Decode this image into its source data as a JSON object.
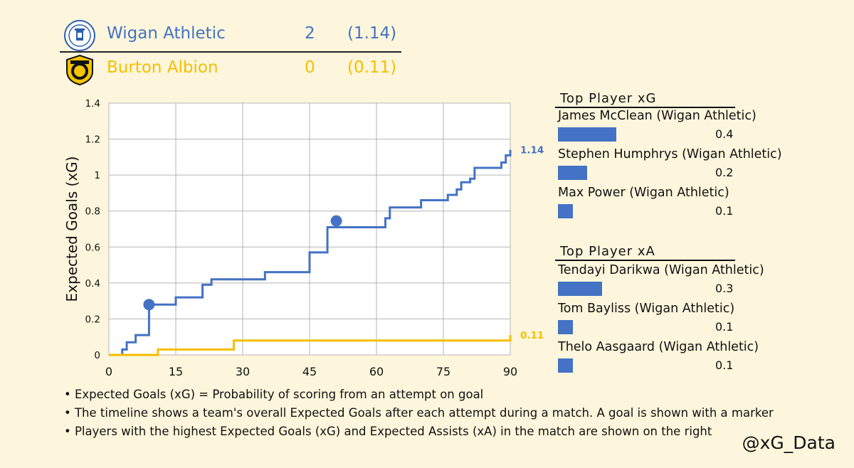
{
  "scoreboard": {
    "home": {
      "name": "Wigan Athletic",
      "score": "2",
      "xg": "(1.14)",
      "color": "#4472c4",
      "crest_icon": "wigan-athletic-crest-icon"
    },
    "away": {
      "name": "Burton Albion",
      "score": "0",
      "xg": "(0.11)",
      "color": "#f5be00",
      "crest_icon": "burton-albion-crest-icon"
    }
  },
  "chart_data": {
    "type": "line",
    "ylabel": "Expected Goals (xG)",
    "xlabel": "",
    "xlim": [
      0,
      90
    ],
    "ylim": [
      0,
      1.4
    ],
    "xticks": [
      "0",
      "15",
      "30",
      "45",
      "60",
      "75",
      "90"
    ],
    "yticks": [
      "0",
      "0.2",
      "0.4",
      "0.6",
      "0.8",
      "1",
      "1.2",
      "1.4"
    ],
    "grid": true,
    "series": [
      {
        "name": "Wigan Athletic",
        "color": "#4472c4",
        "end_label": "1.14",
        "x": [
          0,
          3,
          3,
          4,
          4,
          6,
          6,
          9,
          9,
          15,
          15,
          21,
          21,
          23,
          23,
          35,
          35,
          45,
          45,
          49,
          49,
          62,
          62,
          63,
          63,
          70,
          70,
          76,
          76,
          78,
          78,
          79,
          79,
          81,
          81,
          82,
          82,
          88,
          88,
          89,
          89,
          90,
          90
        ],
        "y": [
          0,
          0,
          0.03,
          0.03,
          0.07,
          0.07,
          0.11,
          0.11,
          0.28,
          0.28,
          0.32,
          0.32,
          0.39,
          0.39,
          0.42,
          0.42,
          0.46,
          0.46,
          0.57,
          0.57,
          0.71,
          0.71,
          0.76,
          0.76,
          0.82,
          0.82,
          0.86,
          0.86,
          0.89,
          0.89,
          0.92,
          0.92,
          0.96,
          0.96,
          0.98,
          0.98,
          1.04,
          1.04,
          1.07,
          1.07,
          1.11,
          1.11,
          1.14
        ],
        "goals": [
          {
            "x": 9,
            "y": 0.28
          },
          {
            "x": 51,
            "y": 0.745
          }
        ]
      },
      {
        "name": "Burton Albion",
        "color": "#f5be00",
        "end_label": "0.11",
        "x": [
          0,
          11,
          11,
          28,
          28,
          90,
          90
        ],
        "y": [
          0,
          0,
          0.03,
          0.03,
          0.08,
          0.08,
          0.11
        ],
        "goals": []
      }
    ]
  },
  "top_xg": {
    "title": "Top Player xG",
    "players": [
      {
        "name": "James McClean (Wigan Athletic)",
        "value": "0.4",
        "fraction": 0.4
      },
      {
        "name": "Stephen Humphrys (Wigan Athletic)",
        "value": "0.2",
        "fraction": 0.2
      },
      {
        "name": "Max Power (Wigan Athletic)",
        "value": "0.1",
        "fraction": 0.1
      }
    ]
  },
  "top_xa": {
    "title": "Top Player xA",
    "players": [
      {
        "name": "Tendayi Darikwa (Wigan Athletic)",
        "value": "0.3",
        "fraction": 0.3
      },
      {
        "name": "Tom Bayliss (Wigan Athletic)",
        "value": "0.1",
        "fraction": 0.1
      },
      {
        "name": "Thelo Aasgaard (Wigan Athletic)",
        "value": "0.1",
        "fraction": 0.1
      }
    ]
  },
  "notes": [
    "• Expected Goals (xG) = Probability of scoring from an attempt on goal",
    "• The timeline shows a team's overall Expected Goals after each attempt during a match. A goal is shown with a marker",
    "• Players with the highest Expected Goals (xG) and Expected Assists (xA) in the match are shown on the right"
  ],
  "credit": "@xG_Data"
}
